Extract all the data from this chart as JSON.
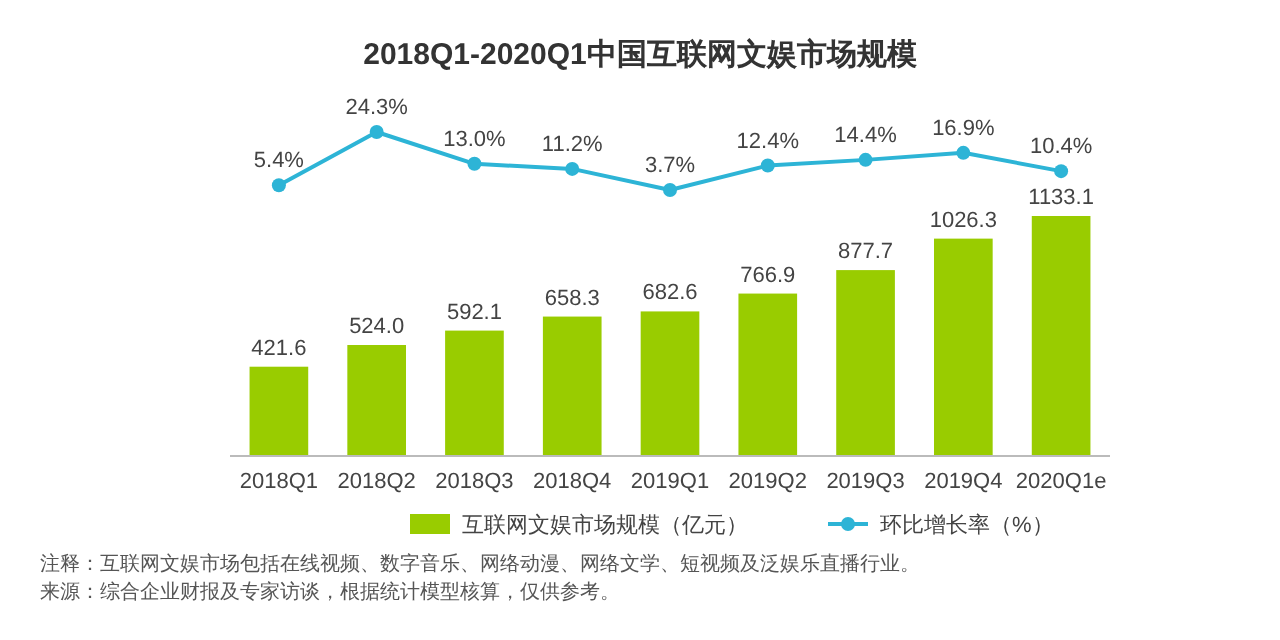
{
  "chart_data": [
    {
      "type": "line",
      "title": "2018Q1-2020Q1中国互联网文娱市场规模",
      "categories": [
        "2018Q1",
        "2018Q2",
        "2018Q3",
        "2018Q4",
        "2019Q1",
        "2019Q2",
        "2019Q3",
        "2019Q4",
        "2020Q1e"
      ],
      "series": [
        {
          "name": "环比增长率（%）",
          "color": "#2db4d6",
          "values": [
            5.4,
            24.3,
            13.0,
            11.2,
            3.7,
            12.4,
            14.4,
            16.9,
            10.4
          ],
          "value_labels": [
            "5.4%",
            "24.3%",
            "13.0%",
            "11.2%",
            "3.7%",
            "12.4%",
            "14.4%",
            "16.9%",
            "10.4%"
          ]
        }
      ],
      "marker": "circle",
      "legend": "bottom",
      "tick_labels": false
    },
    {
      "type": "bar",
      "categories": [
        "2018Q1",
        "2018Q2",
        "2018Q3",
        "2018Q4",
        "2019Q1",
        "2019Q2",
        "2019Q3",
        "2019Q4",
        "2020Q1e"
      ],
      "series": [
        {
          "name": "互联网文娱市场规模（亿元）",
          "color": "#99cc00",
          "values": [
            421.6,
            524.0,
            592.1,
            658.3,
            682.6,
            766.9,
            877.7,
            1026.3,
            1133.1
          ],
          "value_labels": [
            "421.6",
            "524.0",
            "592.1",
            "658.3",
            "682.6",
            "766.9",
            "877.7",
            "1026.3",
            "1133.1"
          ]
        }
      ],
      "legend": "bottom",
      "annotations": [
        "注释：互联网文娱市场包括在线视频、数字音乐、网络动漫、网络文学、短视频及泛娱乐直播行业。",
        "来源：综合企业财报及专家访谈，根据统计模型核算，仅供参考。"
      ]
    }
  ]
}
